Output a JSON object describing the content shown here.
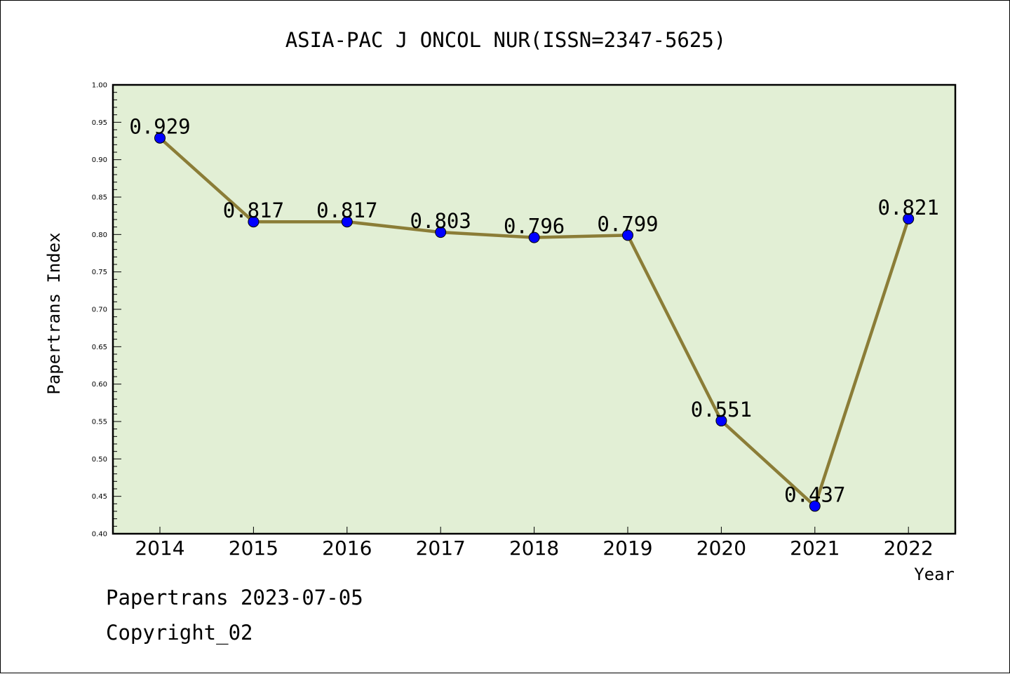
{
  "chart_data": {
    "type": "line",
    "title": "ASIA-PAC J ONCOL NUR(ISSN=2347-5625)",
    "xlabel": "Year",
    "ylabel": "Papertrans Index",
    "categories": [
      "2014",
      "2015",
      "2016",
      "2017",
      "2018",
      "2019",
      "2020",
      "2021",
      "2022"
    ],
    "series": [
      {
        "values": [
          0.929,
          0.817,
          0.817,
          0.803,
          0.796,
          0.799,
          0.551,
          0.437,
          0.821
        ],
        "data_labels": [
          "0.929",
          "0.817",
          "0.817",
          "0.803",
          "0.796",
          "0.799",
          "0.551",
          "0.437",
          "0.821"
        ],
        "line_color": "#8b7d37",
        "marker_color": "#0000ff"
      }
    ],
    "ylim": [
      0.4,
      1.0
    ],
    "yticks": [
      "0.40",
      "0.45",
      "0.50",
      "0.55",
      "0.60",
      "0.65",
      "0.70",
      "0.75",
      "0.80",
      "0.85",
      "0.90",
      "0.95",
      "1.00"
    ],
    "plot_background": "#e2efd5",
    "grid": false,
    "legend": "none"
  },
  "footer": {
    "line1": "Papertrans 2023-07-05",
    "line2": "Copyright_02"
  }
}
